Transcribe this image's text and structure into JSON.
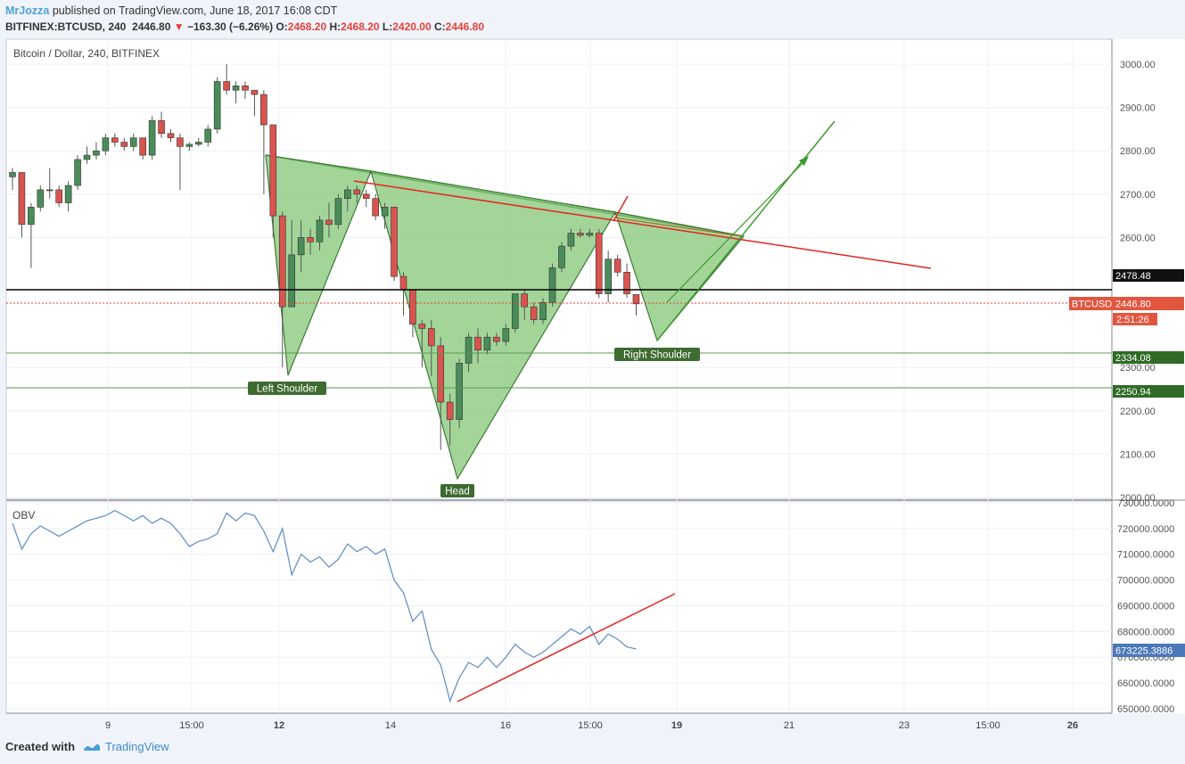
{
  "header": {
    "author": "MrJozza",
    "published_text": "published on TradingView.com, June 18, 2017 16:08 CDT"
  },
  "ticker": {
    "symbol": "BITFINEX:BTCUSD, 240",
    "last": "2446.80",
    "change": "−163.30 (−6.26%)",
    "o_label": "O:",
    "o_value": "2468.20",
    "h_label": "H:",
    "h_value": "2468.20",
    "l_label": "L:",
    "l_value": "2420.00",
    "c_label": "C:",
    "c_value": "2446.80"
  },
  "chart_title": "Bitcoin / Dollar, 240, BITFINEX",
  "obv_label": "OBV",
  "footer": {
    "created_with": "Created with",
    "brand": "TradingView"
  },
  "colors": {
    "up": "#4a8c5a",
    "down": "#d9534f",
    "pattern_fill": "#7cc36d",
    "pattern_stroke": "#3d7a35",
    "trend_red": "#e52420",
    "obv_line": "#5b8bc4"
  },
  "chart_data": [
    {
      "type": "candlestick",
      "title": "Bitcoin / Dollar, 240, BITFINEX",
      "x_ticks": [
        "9",
        "15:00",
        "12",
        "14",
        "16",
        "15:00",
        "19",
        "21",
        "23",
        "15:00",
        "26"
      ],
      "y_ticks": [
        "3000.00",
        "2900.00",
        "2800.00",
        "2700.00",
        "2600.00",
        "2300.00",
        "2200.00",
        "2100.00",
        "2000.00"
      ],
      "ylim": [
        2000,
        3000
      ],
      "candles": [
        [
          2740,
          2760,
          2710,
          2750
        ],
        [
          2750,
          2750,
          2600,
          2630
        ],
        [
          2630,
          2680,
          2530,
          2670
        ],
        [
          2670,
          2720,
          2660,
          2710
        ],
        [
          2710,
          2760,
          2690,
          2710
        ],
        [
          2710,
          2720,
          2670,
          2680
        ],
        [
          2680,
          2730,
          2660,
          2720
        ],
        [
          2720,
          2790,
          2710,
          2780
        ],
        [
          2780,
          2810,
          2770,
          2790
        ],
        [
          2790,
          2820,
          2780,
          2800
        ],
        [
          2800,
          2840,
          2790,
          2830
        ],
        [
          2830,
          2840,
          2810,
          2820
        ],
        [
          2820,
          2830,
          2800,
          2810
        ],
        [
          2810,
          2840,
          2800,
          2830
        ],
        [
          2830,
          2830,
          2780,
          2790
        ],
        [
          2790,
          2880,
          2780,
          2870
        ],
        [
          2870,
          2890,
          2830,
          2840
        ],
        [
          2840,
          2850,
          2820,
          2830
        ],
        [
          2830,
          2840,
          2710,
          2810
        ],
        [
          2810,
          2820,
          2800,
          2815
        ],
        [
          2815,
          2830,
          2810,
          2820
        ],
        [
          2820,
          2860,
          2810,
          2850
        ],
        [
          2850,
          2970,
          2840,
          2960
        ],
        [
          2960,
          3000,
          2930,
          2940
        ],
        [
          2940,
          2960,
          2910,
          2950
        ],
        [
          2950,
          2960,
          2920,
          2940
        ],
        [
          2940,
          2940,
          2880,
          2930
        ],
        [
          2930,
          2940,
          2700,
          2860
        ],
        [
          2860,
          2860,
          2600,
          2650
        ],
        [
          2650,
          2660,
          2300,
          2440
        ],
        [
          2440,
          2640,
          2440,
          2560
        ],
        [
          2560,
          2640,
          2520,
          2600
        ],
        [
          2600,
          2620,
          2560,
          2590
        ],
        [
          2590,
          2650,
          2570,
          2640
        ],
        [
          2640,
          2680,
          2600,
          2630
        ],
        [
          2630,
          2700,
          2620,
          2690
        ],
        [
          2690,
          2720,
          2660,
          2710
        ],
        [
          2710,
          2720,
          2680,
          2700
        ],
        [
          2700,
          2710,
          2670,
          2690
        ],
        [
          2690,
          2700,
          2640,
          2650
        ],
        [
          2650,
          2680,
          2620,
          2670
        ],
        [
          2670,
          2670,
          2500,
          2510
        ],
        [
          2510,
          2520,
          2420,
          2480
        ],
        [
          2480,
          2480,
          2370,
          2400
        ],
        [
          2400,
          2410,
          2300,
          2390
        ],
        [
          2390,
          2410,
          2280,
          2350
        ],
        [
          2350,
          2370,
          2110,
          2220
        ],
        [
          2220,
          2240,
          2120,
          2180
        ],
        [
          2180,
          2320,
          2160,
          2310
        ],
        [
          2310,
          2380,
          2290,
          2370
        ],
        [
          2370,
          2390,
          2310,
          2340
        ],
        [
          2340,
          2380,
          2330,
          2370
        ],
        [
          2370,
          2380,
          2350,
          2360
        ],
        [
          2360,
          2400,
          2350,
          2390
        ],
        [
          2390,
          2470,
          2380,
          2470
        ],
        [
          2470,
          2480,
          2410,
          2440
        ],
        [
          2440,
          2450,
          2400,
          2410
        ],
        [
          2410,
          2460,
          2400,
          2450
        ],
        [
          2450,
          2540,
          2440,
          2530
        ],
        [
          2530,
          2590,
          2520,
          2580
        ],
        [
          2580,
          2620,
          2570,
          2610
        ],
        [
          2610,
          2620,
          2600,
          2605
        ],
        [
          2605,
          2620,
          2600,
          2610
        ],
        [
          2610,
          2620,
          2460,
          2470
        ],
        [
          2470,
          2570,
          2450,
          2550
        ],
        [
          2550,
          2560,
          2510,
          2520
        ],
        [
          2520,
          2540,
          2460,
          2470
        ],
        [
          2468.2,
          2468.2,
          2420,
          2446.8
        ]
      ],
      "horizontal_levels": [
        {
          "value": 2478.48,
          "label": "2478.48"
        },
        {
          "value": 2446.8,
          "label": "2446.80",
          "tag": "BTCUSD"
        },
        {
          "value": 2334.08,
          "label": "2334.08"
        },
        {
          "value": 2250.94,
          "label": "2250.94"
        }
      ],
      "countdown": "2:51:26",
      "annotations": [
        "Left Shoulder",
        "Head",
        "Right Shoulder"
      ]
    },
    {
      "type": "line",
      "title": "OBV",
      "y_ticks": [
        "730000.0000",
        "720000.0000",
        "710000.0000",
        "700000.0000",
        "690000.0000",
        "680000.0000",
        "670000.0000",
        "660000.0000",
        "650000.0000"
      ],
      "ylim": [
        650000,
        730000
      ],
      "last_value_label": "673225.3886",
      "values": [
        722000,
        712000,
        718000,
        721000,
        719000,
        717000,
        719000,
        721000,
        723000,
        724000,
        725000,
        727000,
        725000,
        723000,
        725000,
        722000,
        724000,
        722000,
        718000,
        713000,
        715000,
        716000,
        718000,
        726000,
        723000,
        726000,
        725000,
        719000,
        711000,
        720000,
        702000,
        710000,
        707000,
        709000,
        705000,
        708000,
        714000,
        711000,
        713000,
        710000,
        712000,
        700000,
        695000,
        684000,
        688000,
        673000,
        667000,
        653000,
        662000,
        668000,
        666000,
        670000,
        666000,
        670000,
        675000,
        672000,
        670000,
        672000,
        675000,
        678000,
        681000,
        679000,
        682000,
        675000,
        679000,
        677000,
        674000,
        673225
      ]
    }
  ]
}
